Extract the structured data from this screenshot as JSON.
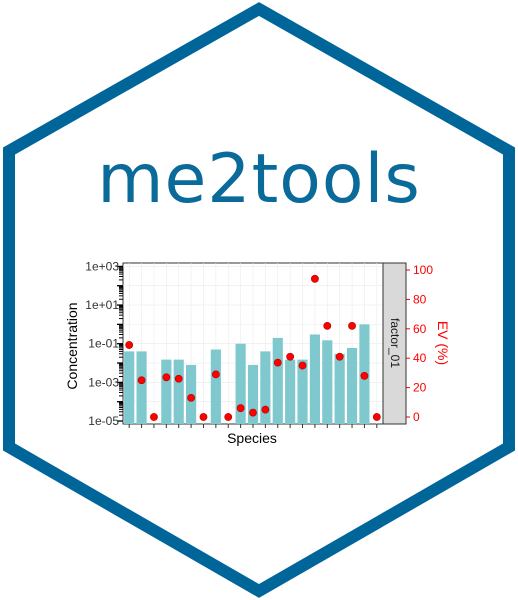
{
  "logo": {
    "title": "me2tools",
    "brand_color": "#006699",
    "background": "#ffffff"
  },
  "chart_data": {
    "type": "bar",
    "xlabel": "Species",
    "ylabel": "Concentration",
    "y2label": "EV (%)",
    "facet_label": "factor_01",
    "y_scale": "log10",
    "ylim": [
      7e-06,
      1500
    ],
    "y_ticks": [
      "1e-05",
      "1e-03",
      "1e-01",
      "1e+01",
      "1e+03"
    ],
    "y2lim": [
      0,
      100
    ],
    "y2_ticks": [
      "0",
      "20",
      "40",
      "60",
      "80",
      "100"
    ],
    "bar_color": "#7ec8ce",
    "point_color": "#ff0000",
    "categories": [
      "",
      "",
      "",
      "",
      "",
      "",
      "",
      "",
      "",
      "",
      "",
      "",
      "",
      "",
      "",
      "",
      "",
      "",
      "",
      "",
      ""
    ],
    "series": [
      {
        "kind": "bar",
        "values": [
          0.04,
          0.04,
          1e-05,
          0.015,
          0.015,
          0.008,
          1e-05,
          0.05,
          1e-05,
          0.1,
          0.008,
          0.04,
          0.2,
          0.015,
          0.015,
          0.3,
          0.15,
          0.03,
          0.06,
          1.0,
          1e-05
        ]
      },
      {
        "kind": "point",
        "axis": "y2",
        "values": [
          49,
          25,
          0,
          27,
          26,
          13,
          0,
          29,
          0,
          6,
          3,
          5,
          37,
          41,
          35,
          94,
          62,
          41,
          62,
          28,
          0
        ]
      }
    ],
    "grid": true,
    "legend": "none"
  }
}
